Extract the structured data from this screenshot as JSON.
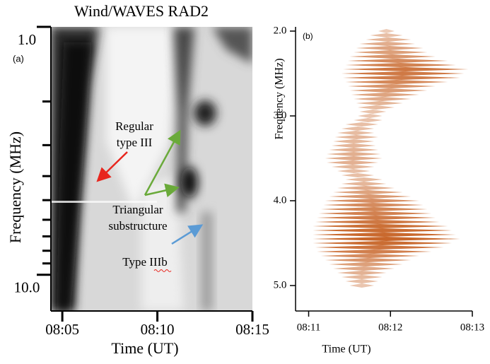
{
  "chart_data": [
    {
      "type": "spectrogram",
      "title": "Wind/WAVES RAD2",
      "panel_label": "(a)",
      "xlabel": "Time (UT)",
      "ylabel": "Frequency (MHz)",
      "xlim": [
        4.4,
        15.0
      ],
      "xticks": [
        {
          "value": 5,
          "label": "08:05"
        },
        {
          "value": 10,
          "label": "08:10"
        },
        {
          "value": 15,
          "label": "08:15"
        }
      ],
      "ylim": [
        1,
        14
      ],
      "ylog": true,
      "yticks": [
        {
          "value": 1,
          "label": "1.0"
        },
        {
          "value": 10,
          "label": "10.0"
        }
      ],
      "yminor": [
        2,
        3,
        4,
        5,
        6,
        7,
        8,
        9
      ],
      "annotations": [
        {
          "lines": [
            "Regular",
            "type III"
          ]
        },
        {
          "lines": [
            "Triangular",
            "substructure"
          ]
        },
        {
          "lines": [
            "Type IIIb"
          ]
        }
      ]
    },
    {
      "type": "profile",
      "panel_label": "(b)",
      "xlabel": "Time (UT)",
      "ylabel": "Frequency (MHz)",
      "xlim": [
        10.84,
        13.0
      ],
      "xticks": [
        {
          "value": 11,
          "label": "08:11"
        },
        {
          "value": 12,
          "label": "08:12"
        },
        {
          "value": 13,
          "label": "08:13"
        }
      ],
      "ylim": [
        1.95,
        5.3
      ],
      "yinverted": true,
      "yticks": [
        {
          "value": 2,
          "label": "2.0"
        },
        {
          "value": 3,
          "label": "3.0"
        },
        {
          "value": 4,
          "label": "4.0"
        },
        {
          "value": 5,
          "label": "5.0"
        }
      ],
      "color": "#c8662a",
      "y": [
        2.0,
        2.05,
        2.1,
        2.15,
        2.2,
        2.25,
        2.3,
        2.35,
        2.4,
        2.45,
        2.5,
        2.55,
        2.6,
        2.65,
        2.7,
        2.75,
        2.8,
        2.85,
        2.9,
        2.95,
        3.0,
        3.05,
        3.1,
        3.15,
        3.2,
        3.25,
        3.3,
        3.35,
        3.4,
        3.45,
        3.5,
        3.55,
        3.6,
        3.65,
        3.7,
        3.75,
        3.8,
        3.85,
        3.9,
        3.95,
        4.0,
        4.05,
        4.1,
        4.15,
        4.2,
        4.25,
        4.3,
        4.35,
        4.4,
        4.45,
        4.5,
        4.55,
        4.6,
        4.65,
        4.7,
        4.75,
        4.8,
        4.85,
        4.9,
        4.95,
        5.0
      ],
      "left": [
        11.85,
        11.75,
        11.7,
        11.62,
        11.58,
        11.55,
        11.5,
        11.48,
        11.45,
        11.42,
        11.4,
        11.42,
        11.45,
        11.48,
        11.5,
        11.52,
        11.55,
        11.58,
        11.6,
        11.62,
        11.6,
        11.55,
        11.45,
        11.4,
        11.35,
        11.32,
        11.3,
        11.28,
        11.25,
        11.22,
        11.2,
        11.22,
        11.28,
        11.35,
        11.4,
        11.45,
        11.4,
        11.35,
        11.3,
        11.25,
        11.2,
        11.18,
        11.15,
        11.12,
        11.1,
        11.08,
        11.05,
        11.05,
        11.05,
        11.05,
        11.05,
        11.08,
        11.1,
        11.15,
        11.2,
        11.25,
        11.3,
        11.35,
        11.4,
        11.45,
        11.5
      ],
      "right": [
        12.05,
        12.15,
        12.25,
        12.3,
        12.4,
        12.45,
        12.55,
        12.7,
        12.8,
        12.95,
        12.9,
        12.85,
        12.7,
        12.55,
        12.45,
        12.35,
        12.25,
        12.15,
        12.05,
        11.95,
        11.9,
        11.9,
        11.85,
        11.8,
        11.8,
        11.85,
        11.8,
        11.82,
        11.85,
        11.88,
        11.9,
        11.85,
        11.8,
        11.75,
        11.8,
        11.9,
        11.95,
        12.05,
        12.15,
        12.25,
        12.35,
        12.4,
        12.45,
        12.5,
        12.55,
        12.6,
        12.7,
        12.75,
        12.8,
        12.85,
        12.75,
        12.65,
        12.5,
        12.35,
        12.25,
        12.15,
        12.05,
        11.95,
        11.9,
        11.85,
        11.8
      ]
    }
  ]
}
